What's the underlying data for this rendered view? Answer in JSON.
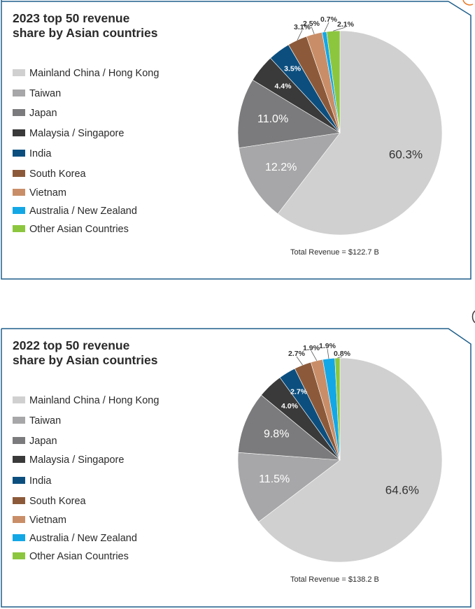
{
  "chart_data": [
    {
      "type": "pie",
      "title_lines": [
        "2023 top 50 revenue",
        "share by Asian countries"
      ],
      "categories": [
        "Mainland China / Hong Kong",
        "Taiwan",
        "Japan",
        "Malaysia / Singapore",
        "India",
        "South Korea",
        "Vietnam",
        "Australia / New Zealand",
        "Other Asian Countries"
      ],
      "values": [
        60.3,
        12.2,
        11.0,
        4.4,
        3.5,
        3.1,
        2.5,
        0.7,
        2.1
      ],
      "labels": [
        "60.3%",
        "12.2%",
        "11.0%",
        "4.4%",
        "3.5%",
        "3.1%",
        "2.5%",
        "0.7%",
        "2.1%"
      ],
      "legend_position": "left",
      "total_label": "Total Revenue = $122.7 B"
    },
    {
      "type": "pie",
      "title_lines": [
        "2022 top 50 revenue",
        "share by Asian countries"
      ],
      "categories": [
        "Mainland China / Hong Kong",
        "Taiwan",
        "Japan",
        "Malaysia / Singapore",
        "India",
        "South Korea",
        "Vietnam",
        "Australia / New Zealand",
        "Other Asian Countries"
      ],
      "values": [
        64.6,
        11.5,
        9.8,
        4.0,
        2.7,
        2.7,
        1.9,
        1.9,
        0.8
      ],
      "labels": [
        "64.6%",
        "11.5%",
        "9.8%",
        "4.0%",
        "2.7%",
        "2.7%",
        "1.9%",
        "1.9%",
        "0.8%"
      ],
      "legend_position": "left",
      "total_label": "Total Revenue = $138.2 B"
    }
  ],
  "colors": {
    "slices": [
      "#d0d0d0",
      "#a7a7a9",
      "#7b7b7d",
      "#3a3a3a",
      "#0c4f7f",
      "#8c5a3a",
      "#c98e68",
      "#14a7e6",
      "#8cc63f"
    ],
    "frame": "#1f5f8b",
    "accent": "#e87722"
  }
}
